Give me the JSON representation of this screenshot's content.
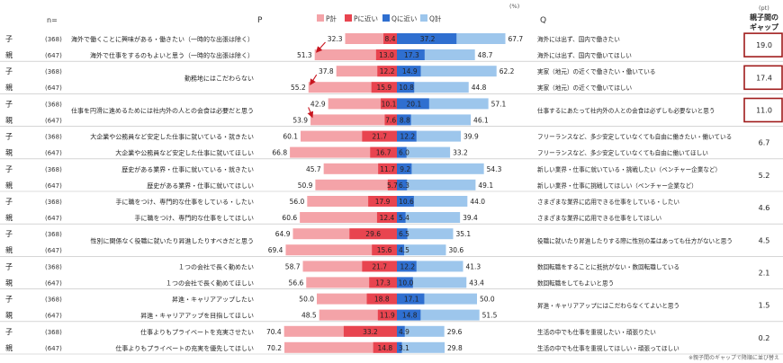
{
  "header": {
    "n_label": "n=",
    "p_label": "P",
    "q_label": "Q",
    "percent_unit": "(%)",
    "gap_unit": "(pt)",
    "gap_title_line1": "親子間の",
    "gap_title_line2": "ギャップ"
  },
  "legend": [
    {
      "label": "P計",
      "color": "#f4a3a8"
    },
    {
      "label": "Pに近い",
      "color": "#e8444f"
    },
    {
      "label": "Qに近い",
      "color": "#2f6fd0"
    },
    {
      "label": "Q計",
      "color": "#9dc6ec"
    }
  ],
  "footnote": "※親子間のギャップで降順に並び替え",
  "colors": {
    "p_total": "#f4a3a8",
    "p_near": "#e8444f",
    "q_near": "#2f6fd0",
    "q_total": "#9dc6ec",
    "highlight_border": "#a01c1c",
    "arrow": "#c8151f"
  },
  "chart_data": {
    "type": "bar",
    "title": "",
    "unit": "%",
    "gap_unit": "pt",
    "groups": [
      {
        "p_text": [
          "海外で働くことに興味がある・働きたい（一時的な出張は除く）",
          "海外で仕事をするのもよいと思う（一時的な出張は除く）"
        ],
        "q_text": [
          "海外には出ず、国内で働きたい",
          "海外には出ず、国内で働いてほしい"
        ],
        "rows": [
          {
            "who": "子",
            "n": "(368)",
            "p_total": 32.3,
            "p_near": 8.4,
            "q_near": 37.2,
            "q_total": 67.7
          },
          {
            "who": "親",
            "n": "(647)",
            "p_total": 51.3,
            "p_near": 13.0,
            "q_near": 17.3,
            "q_total": 48.7
          }
        ],
        "gap": "19.0",
        "highlight": true
      },
      {
        "p_text": [
          "勤務地にはこだわらない"
        ],
        "q_text": [
          "実家（地元）の近くで働きたい・働いている",
          "実家（地元）の近くで働いてほしい"
        ],
        "rows": [
          {
            "who": "子",
            "n": "(368)",
            "p_total": 37.8,
            "p_near": 12.2,
            "q_near": 14.9,
            "q_total": 62.2
          },
          {
            "who": "親",
            "n": "(647)",
            "p_total": 55.2,
            "p_near": 15.9,
            "q_near": 10.8,
            "q_total": 44.8
          }
        ],
        "gap": "17.4",
        "highlight": true
      },
      {
        "p_text": [
          "仕事を円滑に進めるためには社内外の人との会食は必要だと思う"
        ],
        "q_text": [
          "仕事するにあたって社内外の人との会食は必ずしも必要ないと思う"
        ],
        "rows": [
          {
            "who": "子",
            "n": "(368)",
            "p_total": 42.9,
            "p_near": 10.1,
            "q_near": 20.1,
            "q_total": 57.1
          },
          {
            "who": "親",
            "n": "(647)",
            "p_total": 53.9,
            "p_near": 7.6,
            "q_near": 8.8,
            "q_total": 46.1
          }
        ],
        "gap": "11.0",
        "highlight": true
      },
      {
        "p_text": [
          "大企業や公務員など安定した仕事に就いている・就きたい",
          "大企業や公務員など安定した仕事に就いてほしい"
        ],
        "q_text": [
          "フリーランスなど、多少安定していなくても自由に働きたい・働いている",
          "フリーランスなど、多少安定していなくても自由に働いてほしい"
        ],
        "rows": [
          {
            "who": "子",
            "n": "(368)",
            "p_total": 60.1,
            "p_near": 21.7,
            "q_near": 12.2,
            "q_total": 39.9
          },
          {
            "who": "親",
            "n": "(647)",
            "p_total": 66.8,
            "p_near": 16.7,
            "q_near": 6.0,
            "q_total": 33.2
          }
        ],
        "gap": "6.7",
        "highlight": false
      },
      {
        "p_text": [
          "歴史がある業界・仕事に就いている・就きたい",
          "歴史がある業界・仕事に就いてほしい"
        ],
        "q_text": [
          "新しい業界・仕事に就いている・挑戦したい（ベンチャー企業など）",
          "新しい業界・仕事に挑戦してほしい（ベンチャー企業など）"
        ],
        "rows": [
          {
            "who": "子",
            "n": "(368)",
            "p_total": 45.7,
            "p_near": 11.7,
            "q_near": 9.2,
            "q_total": 54.3
          },
          {
            "who": "親",
            "n": "(647)",
            "p_total": 50.9,
            "p_near": 5.7,
            "q_near": 6.3,
            "q_total": 49.1
          }
        ],
        "gap": "5.2",
        "highlight": false
      },
      {
        "p_text": [
          "手に職をつけ、専門的な仕事をしている・したい",
          "手に職をつけ、専門的な仕事をしてほしい"
        ],
        "q_text": [
          "さまざまな業界に応用できる仕事をしている・したい",
          "さまざまな業界に応用できる仕事をしてほしい"
        ],
        "rows": [
          {
            "who": "子",
            "n": "(368)",
            "p_total": 56.0,
            "p_near": 17.9,
            "q_near": 10.6,
            "q_total": 44.0
          },
          {
            "who": "親",
            "n": "(647)",
            "p_total": 60.6,
            "p_near": 12.4,
            "q_near": 5.4,
            "q_total": 39.4
          }
        ],
        "gap": "4.6",
        "highlight": false
      },
      {
        "p_text": [
          "性別に関係なく役職に就いたり昇進したりすべきだと思う"
        ],
        "q_text": [
          "役職に就いたり昇進したりする際に性別の差はあっても仕方がないと思う"
        ],
        "rows": [
          {
            "who": "子",
            "n": "(368)",
            "p_total": 64.9,
            "p_near": 29.6,
            "q_near": 6.5,
            "q_total": 35.1
          },
          {
            "who": "親",
            "n": "(647)",
            "p_total": 69.4,
            "p_near": 15.6,
            "q_near": 4.5,
            "q_total": 30.6
          }
        ],
        "gap": "4.5",
        "highlight": false
      },
      {
        "p_text": [
          "１つの会社で長く勤めたい",
          "１つの会社で長く勤めてほしい"
        ],
        "q_text": [
          "数回転職をすることに抵抗がない・数回転職している",
          "数回転職をしてもよいと思う"
        ],
        "rows": [
          {
            "who": "子",
            "n": "(368)",
            "p_total": 58.7,
            "p_near": 21.7,
            "q_near": 12.2,
            "q_total": 41.3
          },
          {
            "who": "親",
            "n": "(647)",
            "p_total": 56.6,
            "p_near": 17.3,
            "q_near": 10.0,
            "q_total": 43.4
          }
        ],
        "gap": "2.1",
        "highlight": false
      },
      {
        "p_text": [
          "昇進・キャリアアップしたい",
          "昇進・キャリアアップを目指してほしい"
        ],
        "q_text": [
          "昇進・キャリアアップにはこだわらなくてよいと思う"
        ],
        "rows": [
          {
            "who": "子",
            "n": "(368)",
            "p_total": 50.0,
            "p_near": 18.8,
            "q_near": 17.1,
            "q_total": 50.0
          },
          {
            "who": "親",
            "n": "(647)",
            "p_total": 48.5,
            "p_near": 11.9,
            "q_near": 14.8,
            "q_total": 51.5
          }
        ],
        "gap": "1.5",
        "highlight": false
      },
      {
        "p_text": [
          "仕事よりもプライベートを充実させたい",
          "仕事よりもプライベートの充実を優先してほしい"
        ],
        "q_text": [
          "生活の中でも仕事を重視したい・頑張りたい",
          "生活の中でも仕事を重視してほしい・頑張ってほしい"
        ],
        "rows": [
          {
            "who": "子",
            "n": "(368)",
            "p_total": 70.4,
            "p_near": 33.2,
            "q_near": 4.9,
            "q_total": 29.6
          },
          {
            "who": "親",
            "n": "(647)",
            "p_total": 70.2,
            "p_near": 14.8,
            "q_near": 3.1,
            "q_total": 29.8
          }
        ],
        "gap": "0.2",
        "highlight": false
      }
    ]
  }
}
